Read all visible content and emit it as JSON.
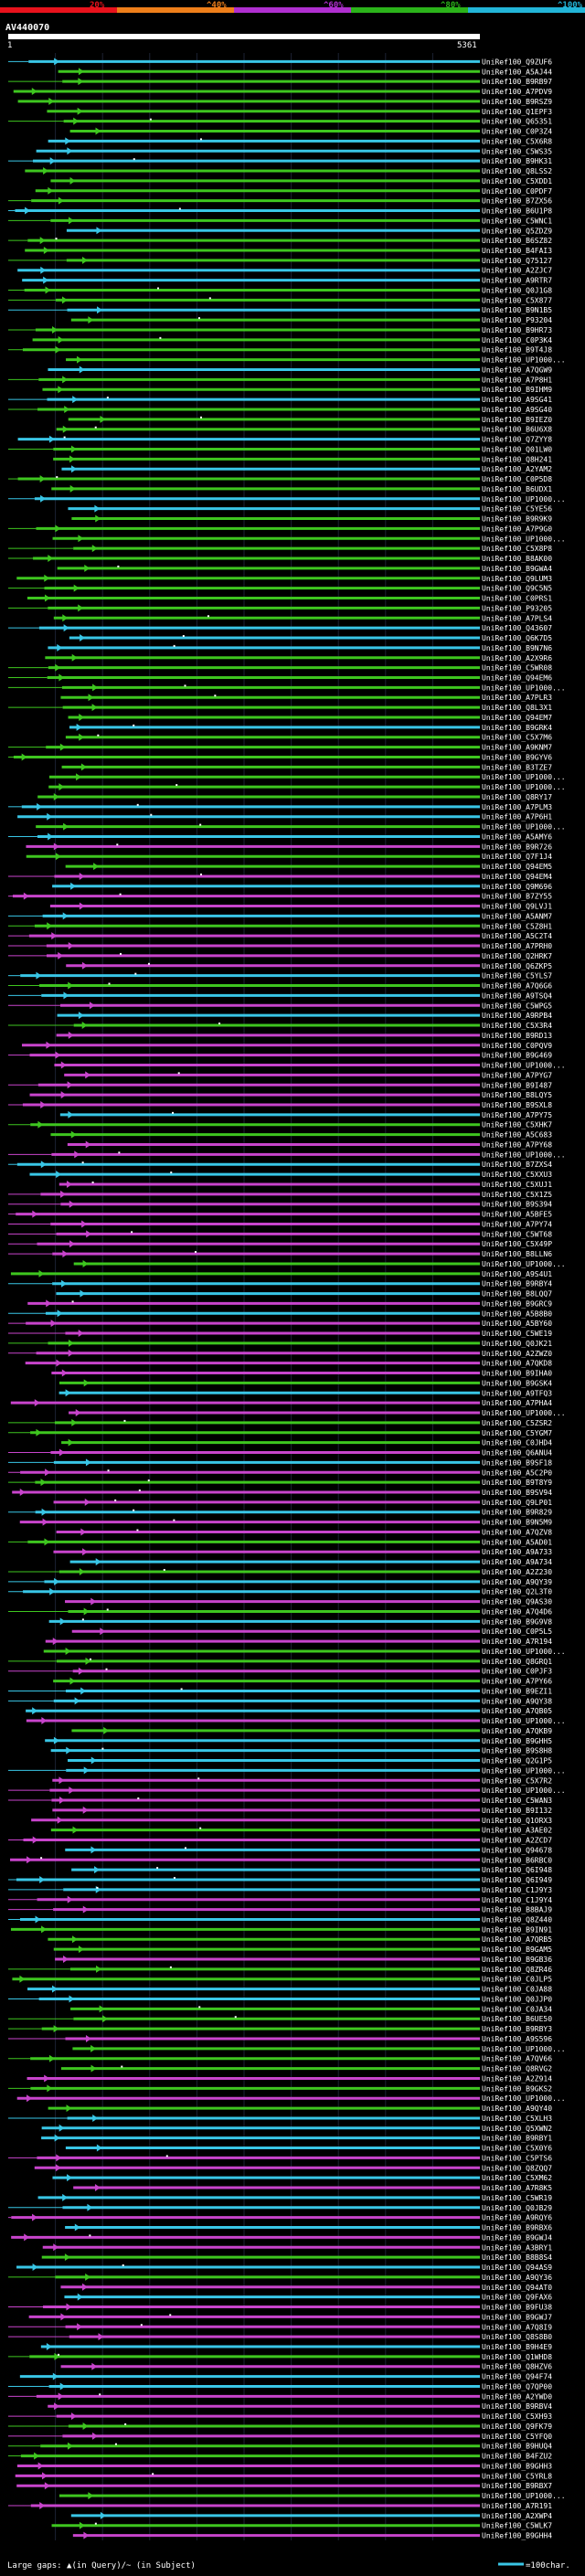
{
  "chart_data": {
    "type": "alignment-overview",
    "title": "AV440070",
    "query_start_label": "1",
    "query_end_label": "5361",
    "query_length": 5361,
    "color_scale": [
      {
        "label": "20%",
        "color": "#e8121c"
      },
      {
        "label": "^40%",
        "color": "#ef7f1a"
      },
      {
        "label": "^60%",
        "color": "#b02fd0"
      },
      {
        "label": "^80%",
        "color": "#2bb31a"
      },
      {
        "label": "^100%",
        "color": "#22b5d8"
      }
    ],
    "identity_colors": {
      "80-100": "#39c6e6",
      "60-80": "#3ec61f",
      "40-60": "#c844cc"
    },
    "hit_labels": [
      "UniRef100_Q9ZUF6",
      "UniRef100_A5AJ44",
      "UniRef100_B9RB97",
      "UniRef100_A7PDV9",
      "UniRef100_B9RSZ9",
      "UniRef100_Q1EPF3",
      "UniRef100_Q65351",
      "UniRef100_C0P3Z4",
      "UniRef100_C5X6R8",
      "UniRef100_C5WS35",
      "UniRef100_B9HK31",
      "UniRef100_Q8LSS2",
      "UniRef100_C5XDD1",
      "UniRef100_C0PDF7",
      "UniRef100_B7ZX56",
      "UniRef100_B6U1P8",
      "UniRef100_C5WNC1",
      "UniRef100_Q5ZDZ9",
      "UniRef100_B6SZ82",
      "UniRef100_B4FAI3",
      "UniRef100_Q75127",
      "UniRef100_A2ZJC7",
      "UniRef100_A9RTR7",
      "UniRef100_Q0J1G8",
      "UniRef100_C5X877",
      "UniRef100_B9N1B5",
      "UniRef100_P93204",
      "UniRef100_B9HR73",
      "UniRef100_C0P3K4",
      "UniRef100_B9T4J8",
      "UniRef100_UP1000...",
      "UniRef100_A7QGW9",
      "UniRef100_A7P8H1",
      "UniRef100_B9IHM9",
      "UniRef100_A9SG41",
      "UniRef100_A9SG40",
      "UniRef100_B9IEZ0",
      "UniRef100_B6U6X8",
      "UniRef100_Q7ZYY8",
      "UniRef100_Q01LW0",
      "UniRef100_Q8H241",
      "UniRef100_A2YAM2",
      "UniRef100_C0P5D8",
      "UniRef100_B6UDX1",
      "UniRef100_UP1000...",
      "UniRef100_C5YE56",
      "UniRef100_B9R9K9",
      "UniRef100_A7P9G0",
      "UniRef100_UP1000...",
      "UniRef100_C5X8P8",
      "UniRef100_B8AK00",
      "UniRef100_B9GWA4",
      "UniRef100_Q9LUM3",
      "UniRef100_Q9C5N5",
      "UniRef100_C0PRS1",
      "UniRef100_P93205",
      "UniRef100_A7PLS4",
      "UniRef100_Q43607",
      "UniRef100_Q6K7D5",
      "UniRef100_B9N7N6",
      "UniRef100_A2X9R6",
      "UniRef100_C5WR08",
      "UniRef100_Q94EM6",
      "UniRef100_UP1000...",
      "UniRef100_A7PLR3",
      "UniRef100_Q8L3X1",
      "UniRef100_Q94EM7",
      "UniRef100_B9GRK4",
      "UniRef100_C5X7M6",
      "UniRef100_A9KNM7",
      "UniRef100_B9GYV6",
      "UniRef100_B3TZE7",
      "UniRef100_UP1000...",
      "UniRef100_UP1000...",
      "UniRef100_Q8RY17",
      "UniRef100_A7PLM3",
      "UniRef100_A7P6H1",
      "UniRef100_UP1000...",
      "UniRef100_A5AMY6",
      "UniRef100_B9R726",
      "UniRef100_Q7F1J4",
      "UniRef100_Q94EM5",
      "UniRef100_Q94EM4",
      "UniRef100_Q9M696",
      "UniRef100_B7ZY55",
      "UniRef100_Q9LVJ1",
      "UniRef100_A5ANM7",
      "UniRef100_C5Z8H1",
      "UniRef100_A5C2T4",
      "UniRef100_A7PRH0",
      "UniRef100_Q2HRK7",
      "UniRef100_Q6ZKP5",
      "UniRef100_C5YLS7",
      "UniRef100_A7Q6G6",
      "UniRef100_A9TSQ4",
      "UniRef100_C5WPG5",
      "UniRef100_A9RPB4",
      "UniRef100_C5X3R4",
      "UniRef100_B9RD13",
      "UniRef100_C0PQV9",
      "UniRef100_B9G469",
      "UniRef100_UP1000...",
      "UniRef100_A7PYG7",
      "UniRef100_B9I487",
      "UniRef100_B8LQY5",
      "UniRef100_B9SXL8",
      "UniRef100_A7PY75",
      "UniRef100_C5XHK7",
      "UniRef100_A5C683",
      "UniRef100_A7PY68",
      "UniRef100_UP1000...",
      "UniRef100_B7ZXS4",
      "UniRef100_C5XXU3",
      "UniRef100_C5XUJ1",
      "UniRef100_C5X1Z5",
      "UniRef100_B9S394",
      "UniRef100_A5BFE5",
      "UniRef100_A7PY74",
      "UniRef100_C5WT68",
      "UniRef100_C5X49P",
      "UniRef100_B8LLN6",
      "UniRef100_UP1000...",
      "UniRef100_A9S4U1",
      "UniRef100_B9RBY4",
      "UniRef100_B8LQQ7",
      "UniRef100_B9GRC9",
      "UniRef100_A5B8B0",
      "UniRef100_A5BY60",
      "UniRef100_C5WE19",
      "UniRef100_Q0JK21",
      "UniRef100_A2ZWZ0",
      "UniRef100_A7QKD8",
      "UniRef100_B9IHA0",
      "UniRef100_B9GSK4",
      "UniRef100_A9TFQ3",
      "UniRef100_A7PHA4",
      "UniRef100_UP1000...",
      "UniRef100_C5ZSR2",
      "UniRef100_C5YGM7",
      "UniRef100_C0JHD4",
      "UniRef100_Q6ANU4",
      "UniRef100_B9SF18",
      "UniRef100_A5C2P0",
      "UniRef100_B9T8Y9",
      "UniRef100_B9SV94",
      "UniRef100_Q9LP01",
      "UniRef100_B9R829",
      "UniRef100_B9N5M9",
      "UniRef100_A7QZV8",
      "UniRef100_A5AD01",
      "UniRef100_A9A733",
      "UniRef100_A9A734",
      "UniRef100_A2Z230",
      "UniRef100_A9QY39",
      "UniRef100_Q2L3T0",
      "UniRef100_Q9AS30",
      "UniRef100_A7Q4D6",
      "UniRef100_B9G9V8",
      "UniRef100_C0P5L5",
      "UniRef100_A7R194",
      "UniRef100_UP1000...",
      "UniRef100_Q8GRQ1",
      "UniRef100_C0PJF3",
      "UniRef100_A7PY66",
      "UniRef100_B9EZI1",
      "UniRef100_A9QY38",
      "UniRef100_A7QB05",
      "UniRef100_UP1000...",
      "UniRef100_A7QKB9",
      "UniRef100_B9GHH5",
      "UniRef100_B9S8H8",
      "UniRef100_Q2G1P5",
      "UniRef100_UP1000...",
      "UniRef100_C5X7R2",
      "UniRef100_UP1000...",
      "UniRef100_C5WAN3",
      "UniRef100_B9I132",
      "UniRef100_Q1ORX3",
      "UniRef100_A3AE02",
      "UniRef100_A2ZCD7",
      "UniRef100_Q94678",
      "UniRef100_B6RBC0",
      "UniRef100_Q6I948",
      "UniRef100_Q6I949",
      "UniRef100_C1J9Y3",
      "UniRef100_C1J9Y4",
      "UniRef100_B8BAJ9",
      "UniRef100_Q8Z440",
      "UniRef100_B9IN91",
      "UniRef100_A7QRB5",
      "UniRef100_B9GAM5",
      "UniRef100_B9GB36",
      "UniRef100_Q8ZR46",
      "UniRef100_C0JLP5",
      "UniRef100_C0JA88",
      "UniRef100_Q0JJP0",
      "UniRef100_C0JA34",
      "UniRef100_B6UE50",
      "UniRef100_B9RBY3",
      "UniRef100_A9S596",
      "UniRef100_UP1000...",
      "UniRef100_A7QV66",
      "UniRef100_Q8RVG2",
      "UniRef100_A2Z914",
      "UniRef100_B9GKS2",
      "UniRef100_UP1000...",
      "UniRef100_A9QY40",
      "UniRef100_C5XLH3",
      "UniRef100_Q5XWN2",
      "UniRef100_B9RBY1",
      "UniRef100_C5X0Y6",
      "UniRef100_C5PTS6",
      "UniRef100_Q8ZQQ7",
      "UniRef100_C5XM62",
      "UniRef100_A7R8K5",
      "UniRef100_C5WR19",
      "UniRef100_Q0JB29",
      "UniRef100_A9RQY6",
      "UniRef100_B9RBX6",
      "UniRef100_B9GWJ4",
      "UniRef100_A3BRY1",
      "UniRef100_B8B8S4",
      "UniRef100_Q94AS9",
      "UniRef100_A9QY36",
      "UniRef100_Q94AT0",
      "UniRef100_Q9FAX6",
      "UniRef100_B9FU38",
      "UniRef100_B9GWJ7",
      "UniRef100_A7Q8I9",
      "UniRef100_Q8S8B0",
      "UniRef100_B9H4E9",
      "UniRef100_Q1WHD8",
      "UniRef100_Q8HZV6",
      "UniRef100_Q94F74",
      "UniRef100_Q7QP00",
      "UniRef100_A2YWD0",
      "UniRef100_B9RBV4",
      "UniRef100_C5XH93",
      "UniRef100_Q9FK79",
      "UniRef100_C5YFQ0",
      "UniRef100_B9HUQ4",
      "UniRef100_B4FZU2",
      "UniRef100_B9GHH3",
      "UniRef100_C5YRL8",
      "UniRef100_B9RBX7",
      "UniRef100_UP1000...",
      "UniRef100_A7R191",
      "UniRef100_A2XWP4",
      "UniRef100_C5WLK7",
      "UniRef100_B9GHH4"
    ],
    "footer": {
      "legend_text": "Large gaps: ▲(in Query)/~ (in Subject)",
      "scale_text": "=100char."
    }
  }
}
